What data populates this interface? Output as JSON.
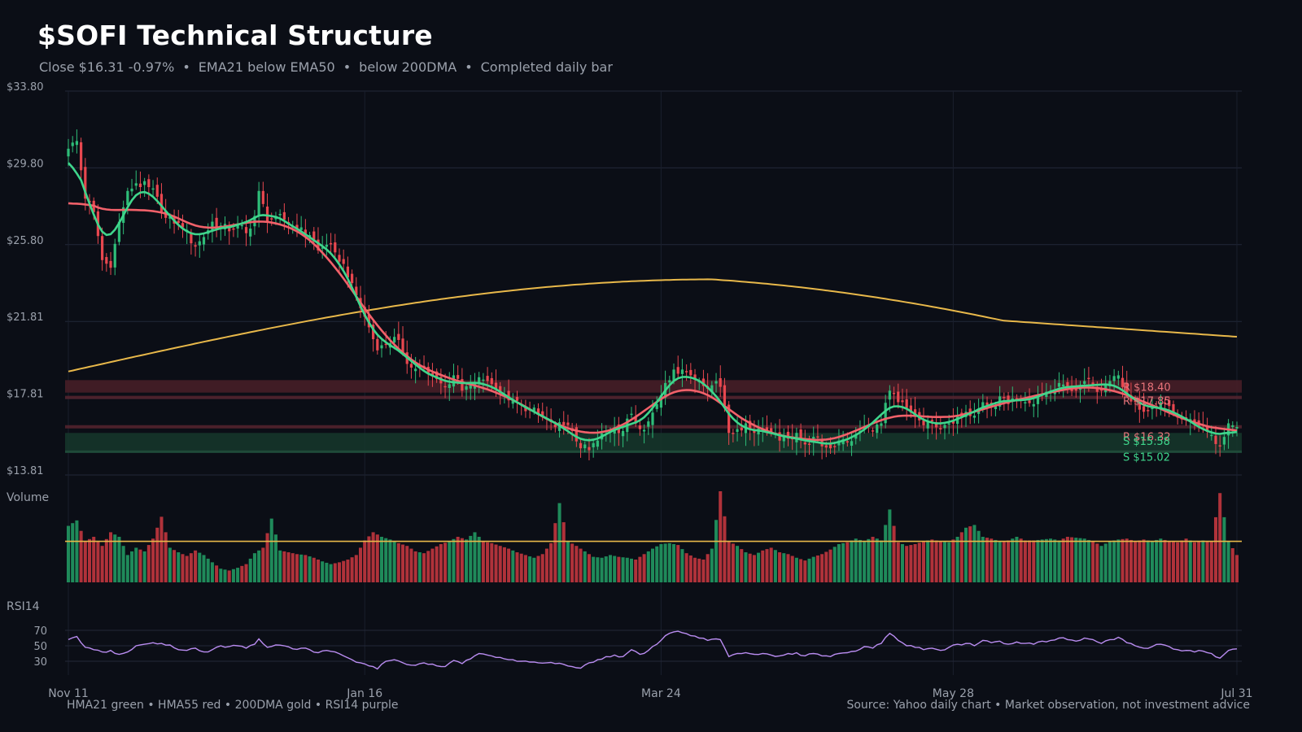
{
  "header": {
    "title": "$SOFI Technical Structure",
    "close": "Close $16.31",
    "change": "-0.97%",
    "ema_note": "EMA21 below EMA50",
    "dma_note": "below 200DMA",
    "bar_note": "Completed daily bar"
  },
  "footer": {
    "legend_text": "HMA21 green • HMA55 red • 200DMA gold  •  RSI14 purple",
    "source_text": "Source: Yahoo daily chart • Market observation, not investment advice"
  },
  "colors": {
    "up": "#2ebd78",
    "down": "#e8474f",
    "hma21": "#3fd68c",
    "hma55": "#f2616a",
    "dma200": "#e8b84a",
    "rsi": "#b98cf0",
    "resistance_zone": "#4a1f28",
    "support_zone": "#16372c",
    "volume_avg": "#e8b84a"
  },
  "chart_data": {
    "type": "line",
    "title": "$SOFI Technical Structure",
    "price_axis": {
      "ticks": [
        "$33.80",
        "$29.80",
        "$25.80",
        "$21.81",
        "$17.81",
        "$13.81"
      ],
      "ylim": [
        13.81,
        33.8
      ]
    },
    "x_ticks": [
      "Nov 11",
      "Jan 16",
      "Mar 24",
      "May 28",
      "Jul 31"
    ],
    "panels": {
      "volume_label": "Volume",
      "rsi_label": "RSI14",
      "rsi_ticks": [
        "70",
        "50",
        "30"
      ],
      "rsi_ylim": [
        10,
        90
      ]
    },
    "levels": [
      {
        "label": "R $18.40",
        "kind": "resistance",
        "price": 18.4,
        "zone": [
          18.1,
          18.75
        ]
      },
      {
        "label": "R $17.85",
        "kind": "resistance",
        "price": 17.85
      },
      {
        "label": "R $16.32",
        "kind": "resistance",
        "price": 16.32
      },
      {
        "label": "S $15.58",
        "kind": "support",
        "price": 15.58,
        "zone": [
          15.05,
          16.0
        ]
      },
      {
        "label": "S $15.02",
        "kind": "support",
        "price": 15.02
      }
    ],
    "close_anchors": [
      [
        0,
        30.8
      ],
      [
        2,
        31.2
      ],
      [
        4,
        28.2
      ],
      [
        6,
        27.5
      ],
      [
        8,
        25.0
      ],
      [
        10,
        24.6
      ],
      [
        12,
        27.0
      ],
      [
        14,
        28.6
      ],
      [
        16,
        29.0
      ],
      [
        19,
        28.8
      ],
      [
        21,
        28.3
      ],
      [
        23,
        27.2
      ],
      [
        25,
        26.9
      ],
      [
        27,
        26.7
      ],
      [
        30,
        25.7
      ],
      [
        32,
        26.2
      ],
      [
        34,
        27.0
      ],
      [
        36,
        26.8
      ],
      [
        38,
        26.5
      ],
      [
        40,
        26.9
      ],
      [
        42,
        26.4
      ],
      [
        44,
        27.3
      ],
      [
        45,
        28.6
      ],
      [
        47,
        27.0
      ],
      [
        49,
        27.3
      ],
      [
        51,
        27.1
      ],
      [
        54,
        26.6
      ],
      [
        57,
        26.3
      ],
      [
        59,
        25.5
      ],
      [
        61,
        25.8
      ],
      [
        63,
        25.4
      ],
      [
        65,
        24.8
      ],
      [
        67,
        23.8
      ],
      [
        69,
        22.5
      ],
      [
        71,
        21.5
      ],
      [
        73,
        20.3
      ],
      [
        75,
        20.6
      ],
      [
        77,
        21.0
      ],
      [
        79,
        20.2
      ],
      [
        81,
        19.4
      ],
      [
        83,
        19.4
      ],
      [
        85,
        19.1
      ],
      [
        87,
        18.8
      ],
      [
        89,
        18.4
      ],
      [
        91,
        19.0
      ],
      [
        93,
        18.2
      ],
      [
        95,
        18.5
      ],
      [
        97,
        18.9
      ],
      [
        99,
        18.7
      ],
      [
        101,
        18.3
      ],
      [
        103,
        18.0
      ],
      [
        105,
        17.7
      ],
      [
        107,
        17.5
      ],
      [
        109,
        17.2
      ],
      [
        111,
        17.0
      ],
      [
        113,
        16.7
      ],
      [
        115,
        16.3
      ],
      [
        117,
        16.4
      ],
      [
        119,
        16.1
      ],
      [
        121,
        15.2
      ],
      [
        123,
        15.1
      ],
      [
        125,
        15.6
      ],
      [
        127,
        16.1
      ],
      [
        129,
        16.3
      ],
      [
        131,
        16.1
      ],
      [
        133,
        17.0
      ],
      [
        135,
        16.2
      ],
      [
        137,
        16.6
      ],
      [
        139,
        17.5
      ],
      [
        141,
        18.6
      ],
      [
        143,
        19.3
      ],
      [
        145,
        19.3
      ],
      [
        147,
        19.0
      ],
      [
        149,
        18.7
      ],
      [
        151,
        18.3
      ],
      [
        153,
        18.7
      ],
      [
        154,
        18.4
      ],
      [
        156,
        16.0
      ],
      [
        158,
        16.2
      ],
      [
        160,
        16.5
      ],
      [
        162,
        16.0
      ],
      [
        164,
        16.2
      ],
      [
        166,
        16.0
      ],
      [
        168,
        15.6
      ],
      [
        170,
        15.7
      ],
      [
        172,
        16.0
      ],
      [
        174,
        15.4
      ],
      [
        176,
        15.8
      ],
      [
        178,
        15.3
      ],
      [
        180,
        15.2
      ],
      [
        182,
        15.6
      ],
      [
        184,
        15.5
      ],
      [
        186,
        15.9
      ],
      [
        188,
        16.3
      ],
      [
        190,
        16.1
      ],
      [
        192,
        16.5
      ],
      [
        194,
        18.2
      ],
      [
        196,
        17.6
      ],
      [
        198,
        17.3
      ],
      [
        200,
        16.9
      ],
      [
        202,
        16.4
      ],
      [
        204,
        16.6
      ],
      [
        206,
        16.2
      ],
      [
        208,
        16.5
      ],
      [
        210,
        16.9
      ],
      [
        212,
        17.1
      ],
      [
        214,
        16.9
      ],
      [
        216,
        17.6
      ],
      [
        218,
        17.4
      ],
      [
        220,
        17.9
      ],
      [
        222,
        17.5
      ],
      [
        224,
        17.8
      ],
      [
        226,
        17.6
      ],
      [
        228,
        17.5
      ],
      [
        230,
        18.0
      ],
      [
        232,
        18.2
      ],
      [
        234,
        18.6
      ],
      [
        236,
        18.4
      ],
      [
        238,
        18.2
      ],
      [
        240,
        18.7
      ],
      [
        242,
        18.5
      ],
      [
        244,
        18.2
      ],
      [
        246,
        18.7
      ],
      [
        248,
        19.0
      ],
      [
        250,
        18.1
      ],
      [
        252,
        17.6
      ],
      [
        254,
        17.1
      ],
      [
        256,
        17.3
      ],
      [
        258,
        17.6
      ],
      [
        260,
        17.4
      ],
      [
        262,
        16.8
      ],
      [
        264,
        16.7
      ],
      [
        266,
        16.5
      ],
      [
        268,
        16.4
      ],
      [
        270,
        15.9
      ],
      [
        272,
        15.3
      ],
      [
        274,
        16.5
      ],
      [
        276,
        16.31
      ]
    ],
    "volume_heights": [
      [
        0,
        0.62
      ],
      [
        2,
        0.68
      ],
      [
        4,
        0.45
      ],
      [
        6,
        0.5
      ],
      [
        8,
        0.4
      ],
      [
        10,
        0.55
      ],
      [
        12,
        0.5
      ],
      [
        14,
        0.3
      ],
      [
        16,
        0.38
      ],
      [
        18,
        0.34
      ],
      [
        20,
        0.48
      ],
      [
        22,
        0.72
      ],
      [
        24,
        0.38
      ],
      [
        26,
        0.33
      ],
      [
        28,
        0.29
      ],
      [
        30,
        0.35
      ],
      [
        32,
        0.3
      ],
      [
        34,
        0.22
      ],
      [
        36,
        0.15
      ],
      [
        38,
        0.13
      ],
      [
        40,
        0.16
      ],
      [
        42,
        0.2
      ],
      [
        44,
        0.32
      ],
      [
        46,
        0.38
      ],
      [
        48,
        0.7
      ],
      [
        50,
        0.35
      ],
      [
        52,
        0.33
      ],
      [
        54,
        0.31
      ],
      [
        56,
        0.3
      ],
      [
        58,
        0.27
      ],
      [
        60,
        0.23
      ],
      [
        62,
        0.2
      ],
      [
        64,
        0.22
      ],
      [
        66,
        0.25
      ],
      [
        68,
        0.3
      ],
      [
        70,
        0.46
      ],
      [
        72,
        0.55
      ],
      [
        74,
        0.5
      ],
      [
        76,
        0.47
      ],
      [
        78,
        0.43
      ],
      [
        80,
        0.4
      ],
      [
        82,
        0.34
      ],
      [
        84,
        0.32
      ],
      [
        86,
        0.37
      ],
      [
        88,
        0.42
      ],
      [
        90,
        0.45
      ],
      [
        92,
        0.5
      ],
      [
        94,
        0.47
      ],
      [
        96,
        0.55
      ],
      [
        98,
        0.45
      ],
      [
        100,
        0.43
      ],
      [
        102,
        0.4
      ],
      [
        104,
        0.37
      ],
      [
        106,
        0.33
      ],
      [
        108,
        0.3
      ],
      [
        110,
        0.27
      ],
      [
        112,
        0.31
      ],
      [
        114,
        0.43
      ],
      [
        116,
        0.87
      ],
      [
        118,
        0.45
      ],
      [
        120,
        0.4
      ],
      [
        122,
        0.34
      ],
      [
        124,
        0.28
      ],
      [
        126,
        0.27
      ],
      [
        128,
        0.3
      ],
      [
        130,
        0.28
      ],
      [
        132,
        0.27
      ],
      [
        134,
        0.25
      ],
      [
        136,
        0.31
      ],
      [
        138,
        0.37
      ],
      [
        140,
        0.42
      ],
      [
        142,
        0.43
      ],
      [
        144,
        0.41
      ],
      [
        146,
        0.32
      ],
      [
        148,
        0.27
      ],
      [
        150,
        0.25
      ],
      [
        152,
        0.37
      ],
      [
        154,
        1.0
      ],
      [
        156,
        0.45
      ],
      [
        158,
        0.4
      ],
      [
        160,
        0.33
      ],
      [
        162,
        0.3
      ],
      [
        164,
        0.35
      ],
      [
        166,
        0.38
      ],
      [
        168,
        0.33
      ],
      [
        170,
        0.31
      ],
      [
        172,
        0.27
      ],
      [
        174,
        0.24
      ],
      [
        176,
        0.28
      ],
      [
        178,
        0.31
      ],
      [
        180,
        0.36
      ],
      [
        182,
        0.42
      ],
      [
        184,
        0.44
      ],
      [
        186,
        0.48
      ],
      [
        188,
        0.45
      ],
      [
        190,
        0.5
      ],
      [
        192,
        0.46
      ],
      [
        194,
        0.8
      ],
      [
        196,
        0.44
      ],
      [
        198,
        0.4
      ],
      [
        200,
        0.42
      ],
      [
        202,
        0.45
      ],
      [
        204,
        0.47
      ],
      [
        206,
        0.45
      ],
      [
        208,
        0.44
      ],
      [
        210,
        0.5
      ],
      [
        212,
        0.6
      ],
      [
        214,
        0.63
      ],
      [
        216,
        0.5
      ],
      [
        218,
        0.48
      ],
      [
        220,
        0.45
      ],
      [
        222,
        0.46
      ],
      [
        224,
        0.5
      ],
      [
        226,
        0.46
      ],
      [
        228,
        0.46
      ],
      [
        230,
        0.47
      ],
      [
        232,
        0.48
      ],
      [
        234,
        0.46
      ],
      [
        236,
        0.5
      ],
      [
        238,
        0.49
      ],
      [
        240,
        0.48
      ],
      [
        242,
        0.45
      ],
      [
        244,
        0.4
      ],
      [
        246,
        0.45
      ],
      [
        248,
        0.47
      ],
      [
        250,
        0.48
      ],
      [
        252,
        0.45
      ],
      [
        254,
        0.47
      ],
      [
        256,
        0.45
      ],
      [
        258,
        0.48
      ],
      [
        260,
        0.45
      ],
      [
        262,
        0.44
      ],
      [
        264,
        0.48
      ],
      [
        266,
        0.44
      ],
      [
        268,
        0.46
      ],
      [
        270,
        0.45
      ],
      [
        272,
        0.98
      ],
      [
        274,
        0.45
      ],
      [
        276,
        0.3
      ]
    ],
    "volume_avg": 0.45,
    "rsi_anchors": [
      [
        0,
        58
      ],
      [
        2,
        62
      ],
      [
        4,
        48
      ],
      [
        6,
        45
      ],
      [
        8,
        42
      ],
      [
        10,
        44
      ],
      [
        12,
        39
      ],
      [
        14,
        42
      ],
      [
        16,
        50
      ],
      [
        18,
        52
      ],
      [
        20,
        54
      ],
      [
        22,
        53
      ],
      [
        24,
        51
      ],
      [
        26,
        45
      ],
      [
        28,
        44
      ],
      [
        30,
        47
      ],
      [
        32,
        42
      ],
      [
        34,
        45
      ],
      [
        36,
        50
      ],
      [
        38,
        49
      ],
      [
        40,
        50
      ],
      [
        42,
        47
      ],
      [
        44,
        52
      ],
      [
        45,
        59
      ],
      [
        47,
        48
      ],
      [
        49,
        51
      ],
      [
        51,
        50
      ],
      [
        53,
        46
      ],
      [
        55,
        47
      ],
      [
        57,
        45
      ],
      [
        59,
        41
      ],
      [
        61,
        44
      ],
      [
        63,
        42
      ],
      [
        65,
        37
      ],
      [
        67,
        32
      ],
      [
        69,
        28
      ],
      [
        71,
        24
      ],
      [
        73,
        20
      ],
      [
        75,
        30
      ],
      [
        77,
        32
      ],
      [
        79,
        28
      ],
      [
        81,
        25
      ],
      [
        83,
        27
      ],
      [
        85,
        26
      ],
      [
        87,
        24
      ],
      [
        89,
        23
      ],
      [
        91,
        31
      ],
      [
        93,
        27
      ],
      [
        95,
        33
      ],
      [
        97,
        40
      ],
      [
        99,
        38
      ],
      [
        101,
        35
      ],
      [
        103,
        33
      ],
      [
        105,
        32
      ],
      [
        107,
        30
      ],
      [
        109,
        29
      ],
      [
        111,
        28
      ],
      [
        113,
        28
      ],
      [
        115,
        27
      ],
      [
        117,
        26
      ],
      [
        119,
        23
      ],
      [
        121,
        21
      ],
      [
        123,
        28
      ],
      [
        125,
        32
      ],
      [
        127,
        36
      ],
      [
        129,
        38
      ],
      [
        131,
        36
      ],
      [
        133,
        45
      ],
      [
        135,
        39
      ],
      [
        137,
        44
      ],
      [
        139,
        52
      ],
      [
        141,
        63
      ],
      [
        143,
        68
      ],
      [
        145,
        67
      ],
      [
        147,
        63
      ],
      [
        149,
        60
      ],
      [
        151,
        57
      ],
      [
        153,
        59
      ],
      [
        154,
        58
      ],
      [
        156,
        36
      ],
      [
        158,
        40
      ],
      [
        160,
        41
      ],
      [
        162,
        39
      ],
      [
        164,
        40
      ],
      [
        166,
        38
      ],
      [
        168,
        37
      ],
      [
        170,
        40
      ],
      [
        172,
        41
      ],
      [
        174,
        37
      ],
      [
        176,
        40
      ],
      [
        178,
        37
      ],
      [
        180,
        36
      ],
      [
        182,
        40
      ],
      [
        184,
        41
      ],
      [
        186,
        43
      ],
      [
        188,
        49
      ],
      [
        190,
        47
      ],
      [
        192,
        53
      ],
      [
        194,
        66
      ],
      [
        196,
        57
      ],
      [
        198,
        50
      ],
      [
        200,
        48
      ],
      [
        202,
        45
      ],
      [
        204,
        47
      ],
      [
        206,
        44
      ],
      [
        208,
        48
      ],
      [
        210,
        52
      ],
      [
        212,
        53
      ],
      [
        214,
        50
      ],
      [
        216,
        57
      ],
      [
        218,
        54
      ],
      [
        220,
        56
      ],
      [
        222,
        52
      ],
      [
        224,
        55
      ],
      [
        226,
        53
      ],
      [
        228,
        52
      ],
      [
        230,
        56
      ],
      [
        232,
        57
      ],
      [
        234,
        60
      ],
      [
        236,
        58
      ],
      [
        238,
        56
      ],
      [
        240,
        60
      ],
      [
        242,
        58
      ],
      [
        244,
        53
      ],
      [
        246,
        58
      ],
      [
        248,
        61
      ],
      [
        250,
        54
      ],
      [
        252,
        50
      ],
      [
        254,
        47
      ],
      [
        256,
        49
      ],
      [
        258,
        52
      ],
      [
        260,
        49
      ],
      [
        262,
        45
      ],
      [
        264,
        44
      ],
      [
        266,
        42
      ],
      [
        268,
        43
      ],
      [
        270,
        40
      ],
      [
        272,
        34
      ],
      [
        274,
        44
      ],
      [
        276,
        46
      ]
    ]
  }
}
